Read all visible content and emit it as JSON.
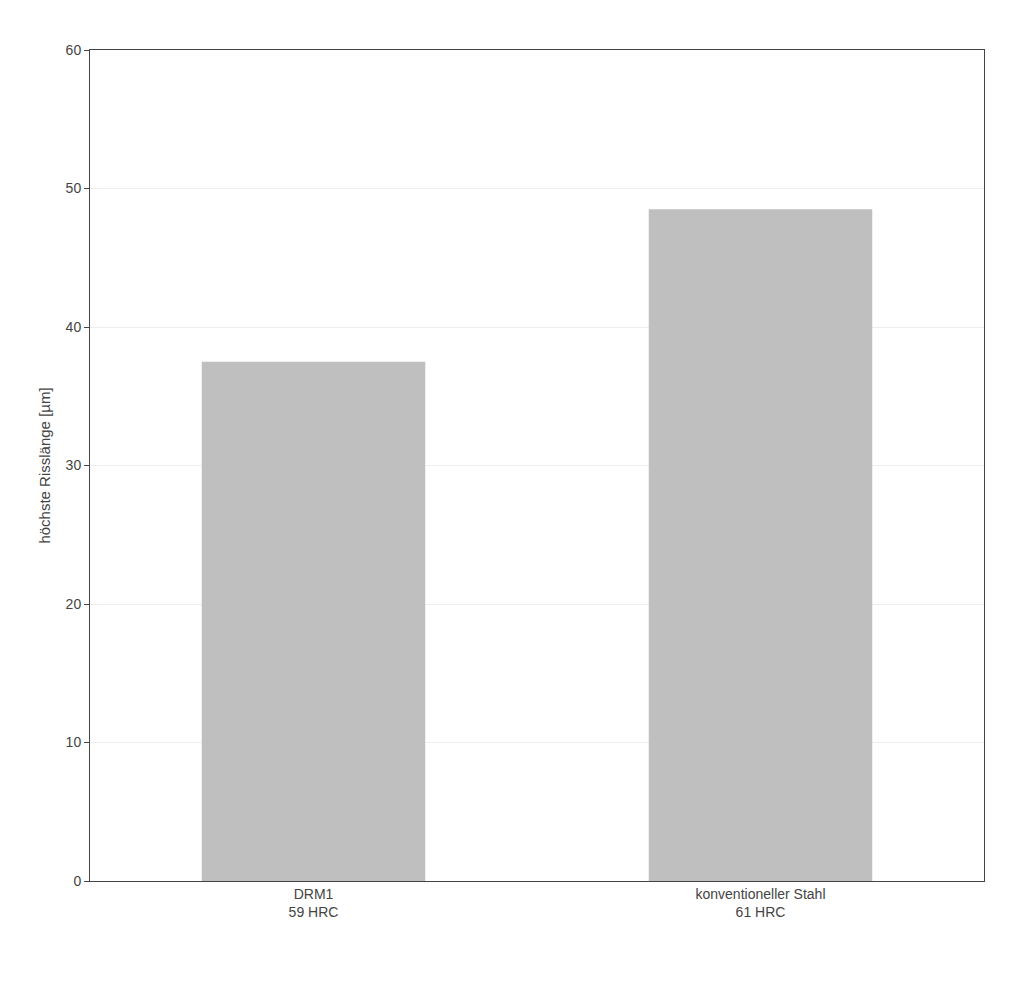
{
  "chart_data": {
    "type": "bar",
    "categories": [
      "DRM1\n59 HRC",
      "konventioneller Stahl\n61 HRC"
    ],
    "values": [
      37.5,
      48.5
    ],
    "color": "#BFBFBF",
    "ylabel": "höchste Risslänge [µm]",
    "ylim": [
      0,
      60
    ],
    "yticks": [
      0,
      10,
      20,
      30,
      40,
      50,
      60
    ],
    "grid": true
  }
}
